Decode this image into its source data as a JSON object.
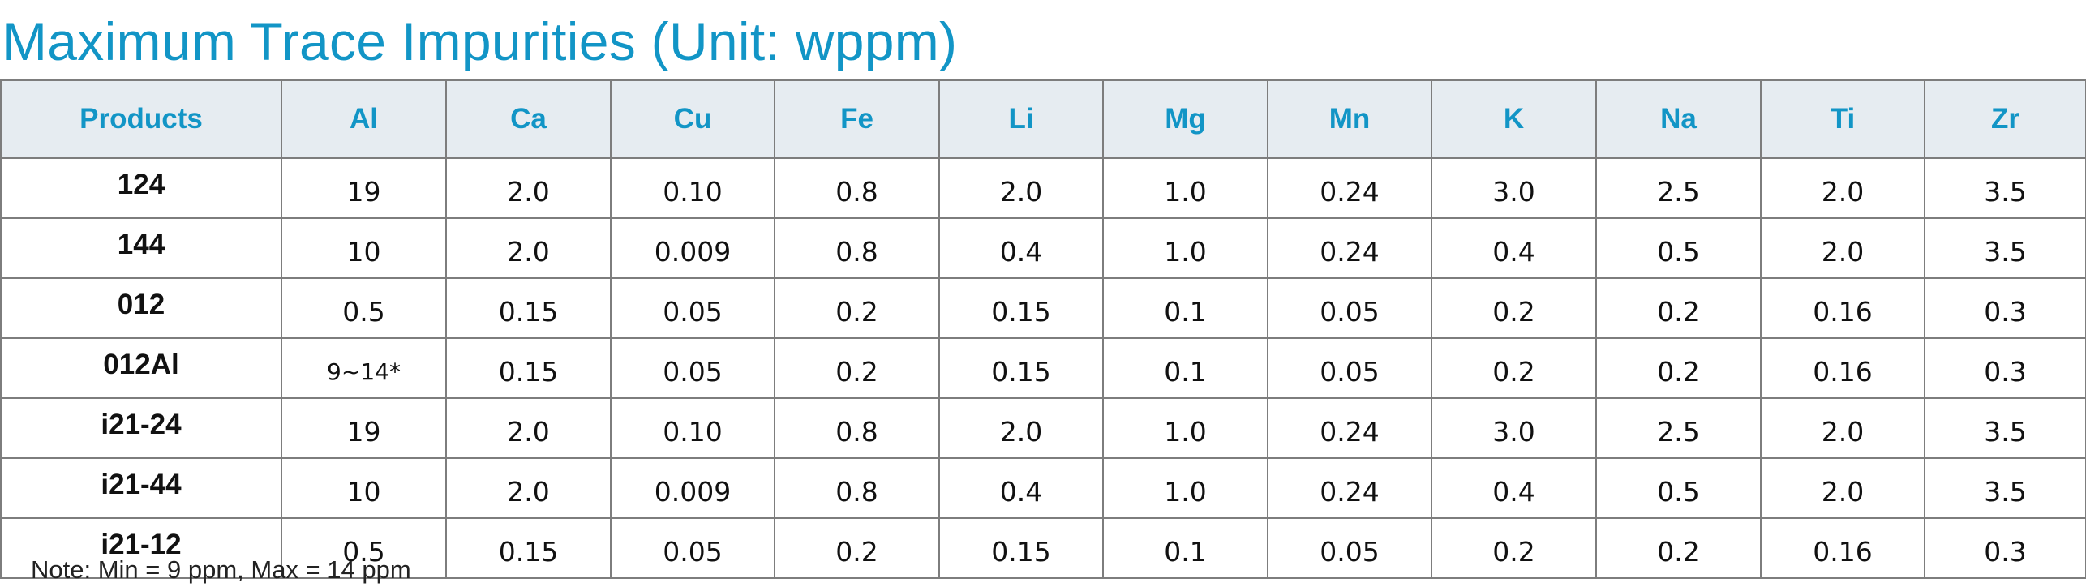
{
  "title": "Maximum Trace Impurities (Unit: wppm)",
  "table": {
    "headers": [
      "Products",
      "Al",
      "Ca",
      "Cu",
      "Fe",
      "Li",
      "Mg",
      "Mn",
      "K",
      "Na",
      "Ti",
      "Zr"
    ],
    "rows": [
      [
        "124",
        "19",
        "2.0",
        "0.10",
        "0.8",
        "2.0",
        "1.0",
        "0.24",
        "3.0",
        "2.5",
        "2.0",
        "3.5"
      ],
      [
        "144",
        "10",
        "2.0",
        "0.009",
        "0.8",
        "0.4",
        "1.0",
        "0.24",
        "0.4",
        "0.5",
        "2.0",
        "3.5"
      ],
      [
        "012",
        "0.5",
        "0.15",
        "0.05",
        "0.2",
        "0.15",
        "0.1",
        "0.05",
        "0.2",
        "0.2",
        "0.16",
        "0.3"
      ],
      [
        "012Al",
        "9~14*",
        "0.15",
        "0.05",
        "0.2",
        "0.15",
        "0.1",
        "0.05",
        "0.2",
        "0.2",
        "0.16",
        "0.3"
      ],
      [
        "i21-24",
        "19",
        "2.0",
        "0.10",
        "0.8",
        "2.0",
        "1.0",
        "0.24",
        "3.0",
        "2.5",
        "2.0",
        "3.5"
      ],
      [
        "i21-44",
        "10",
        "2.0",
        "0.009",
        "0.8",
        "0.4",
        "1.0",
        "0.24",
        "0.4",
        "0.5",
        "2.0",
        "3.5"
      ],
      [
        "i21-12",
        "0.5",
        "0.15",
        "0.05",
        "0.2",
        "0.15",
        "0.1",
        "0.05",
        "0.2",
        "0.2",
        "0.16",
        "0.3"
      ]
    ]
  },
  "note": "Note: Min = 9 ppm, Max = 14 ppm",
  "colors": {
    "accent": "#1295c6",
    "header_background": "#e6ecf1",
    "border": "#7d7d7d",
    "text": "#111111"
  }
}
